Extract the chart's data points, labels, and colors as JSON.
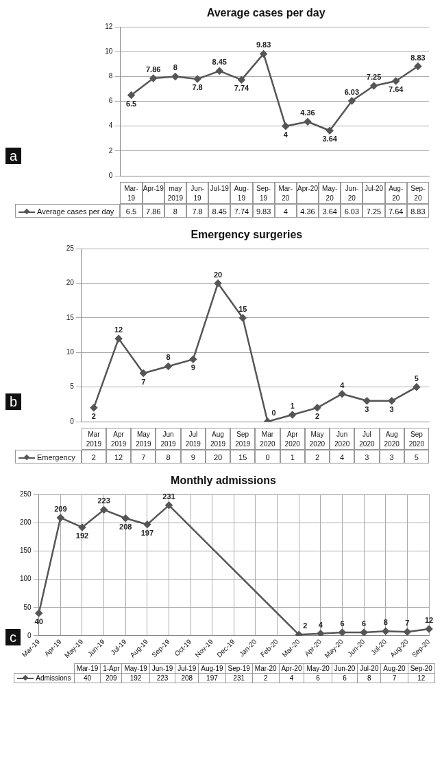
{
  "chart_data": [
    {
      "type": "line",
      "title": "Average cases per day",
      "categories": [
        null,
        null,
        null,
        null,
        null,
        null,
        null,
        null,
        null,
        null,
        null,
        null,
        null,
        null
      ],
      "tick_labels": "y",
      "series": [
        {
          "color": "#555555",
          "values": [
            6.5,
            7.86,
            8,
            7.8,
            8.45,
            7.74,
            9.83,
            4,
            4.36,
            3.64,
            6.03,
            7.25,
            7.64,
            8.83
          ],
          "value_labels": [
            "6.5",
            "7.86",
            "8",
            "7.8",
            "8.45",
            "7.74",
            "9.83",
            "4",
            "4.36",
            "3.64",
            "6.03",
            "7.25",
            "7.64",
            "8.83"
          ]
        }
      ],
      "ylim": [
        0,
        12
      ],
      "yticks": [
        0,
        2,
        4,
        6,
        8,
        10,
        12
      ],
      "grid": "y",
      "marker": "diamond",
      "annotations": [
        "a"
      ]
    },
    {
      "type": "other",
      "legend": "left",
      "categories": [
        "Mar-19",
        "Apr-19",
        "may 2019",
        "Jun-19",
        "Jul-19",
        "Aug-19",
        "Sep-19",
        "Mar-20",
        "Apr-20",
        "May-20",
        "Jun-20",
        "Jul-20",
        "Aug-20",
        "Sep-20"
      ],
      "series": [
        {
          "name": "Average cases per day",
          "color": "#555555",
          "values": [
            6.5,
            7.86,
            8,
            7.8,
            8.45,
            7.74,
            9.83,
            4,
            4.36,
            3.64,
            6.03,
            7.25,
            7.64,
            8.83
          ]
        }
      ],
      "data_labels": true
    },
    {
      "type": "line",
      "title": "Emergency surgeries",
      "categories": [
        null,
        null,
        null,
        null,
        null,
        null,
        null,
        null,
        null,
        null,
        null,
        null,
        null,
        null
      ],
      "tick_labels": "y",
      "series": [
        {
          "color": "#555555",
          "values": [
            2,
            12,
            7,
            8,
            9,
            20,
            15,
            0,
            1,
            2,
            4,
            3,
            3,
            5
          ],
          "value_labels": [
            "2",
            "12",
            "7",
            "8",
            "9",
            "20",
            "15",
            "0",
            "1",
            "2",
            "4",
            "3",
            "3",
            "5"
          ]
        }
      ],
      "ylim": [
        0,
        25
      ],
      "yticks": [
        0,
        5,
        10,
        15,
        20,
        25
      ],
      "grid": "y",
      "marker": "diamond",
      "annotations": [
        "b"
      ]
    },
    {
      "type": "other",
      "legend": "left",
      "categories": [
        "Mar 2019",
        "Apr 2019",
        "May 2019",
        "Jun 2019",
        "Jul 2019",
        "Aug 2019",
        "Sep 2019",
        "Mar 2020",
        "Apr 2020",
        "May 2020",
        "Jun 2020",
        "Jul 2020",
        "Aug 2020",
        "Sep 2020"
      ],
      "series": [
        {
          "name": "Emergency",
          "color": "#555555",
          "values": [
            2,
            12,
            7,
            8,
            9,
            20,
            15,
            0,
            1,
            2,
            4,
            3,
            3,
            5
          ]
        }
      ],
      "data_labels": true
    },
    {
      "type": "line",
      "title": "Monthly admissions",
      "categories": [
        "Mar-19",
        "Apr-19",
        "May-19",
        "Jun-19",
        "Jul-19",
        "Aug-19",
        "Sep-19",
        "Oct-19",
        "Nov-19",
        "Dec-19",
        "Jan-20",
        "Feb-20",
        "Mar-20",
        "Apr-20",
        "May-20",
        "Jun-20",
        "Jul-20",
        "Aug-20",
        "Sep-20"
      ],
      "series": [
        {
          "color": "#555555",
          "values": [
            40,
            209,
            192,
            223,
            208,
            197,
            231,
            null,
            null,
            null,
            null,
            null,
            2,
            4,
            6,
            6,
            8,
            7,
            12
          ]
        }
      ],
      "ylim": [
        0,
        250
      ],
      "yticks": [
        0,
        50,
        100,
        150,
        200,
        250
      ],
      "grid": true,
      "marker": "diamond",
      "data_labels": true,
      "annotations": [
        "c"
      ]
    },
    {
      "type": "other",
      "legend": "left",
      "categories": [
        "Mar-19",
        "1-Apr",
        "May-19",
        "Jun-19",
        "Jul-19",
        "Aug-19",
        "Sep-19",
        "Mar-20",
        "Apr-20",
        "May-20",
        "Jun-20",
        "Jul-20",
        "Aug-20",
        "Sep-20"
      ],
      "series": [
        {
          "name": "Admissions",
          "color": "#555555",
          "values": [
            40,
            209,
            192,
            223,
            208,
            197,
            231,
            2,
            4,
            6,
            6,
            8,
            7,
            12
          ]
        }
      ],
      "data_labels": true
    }
  ]
}
